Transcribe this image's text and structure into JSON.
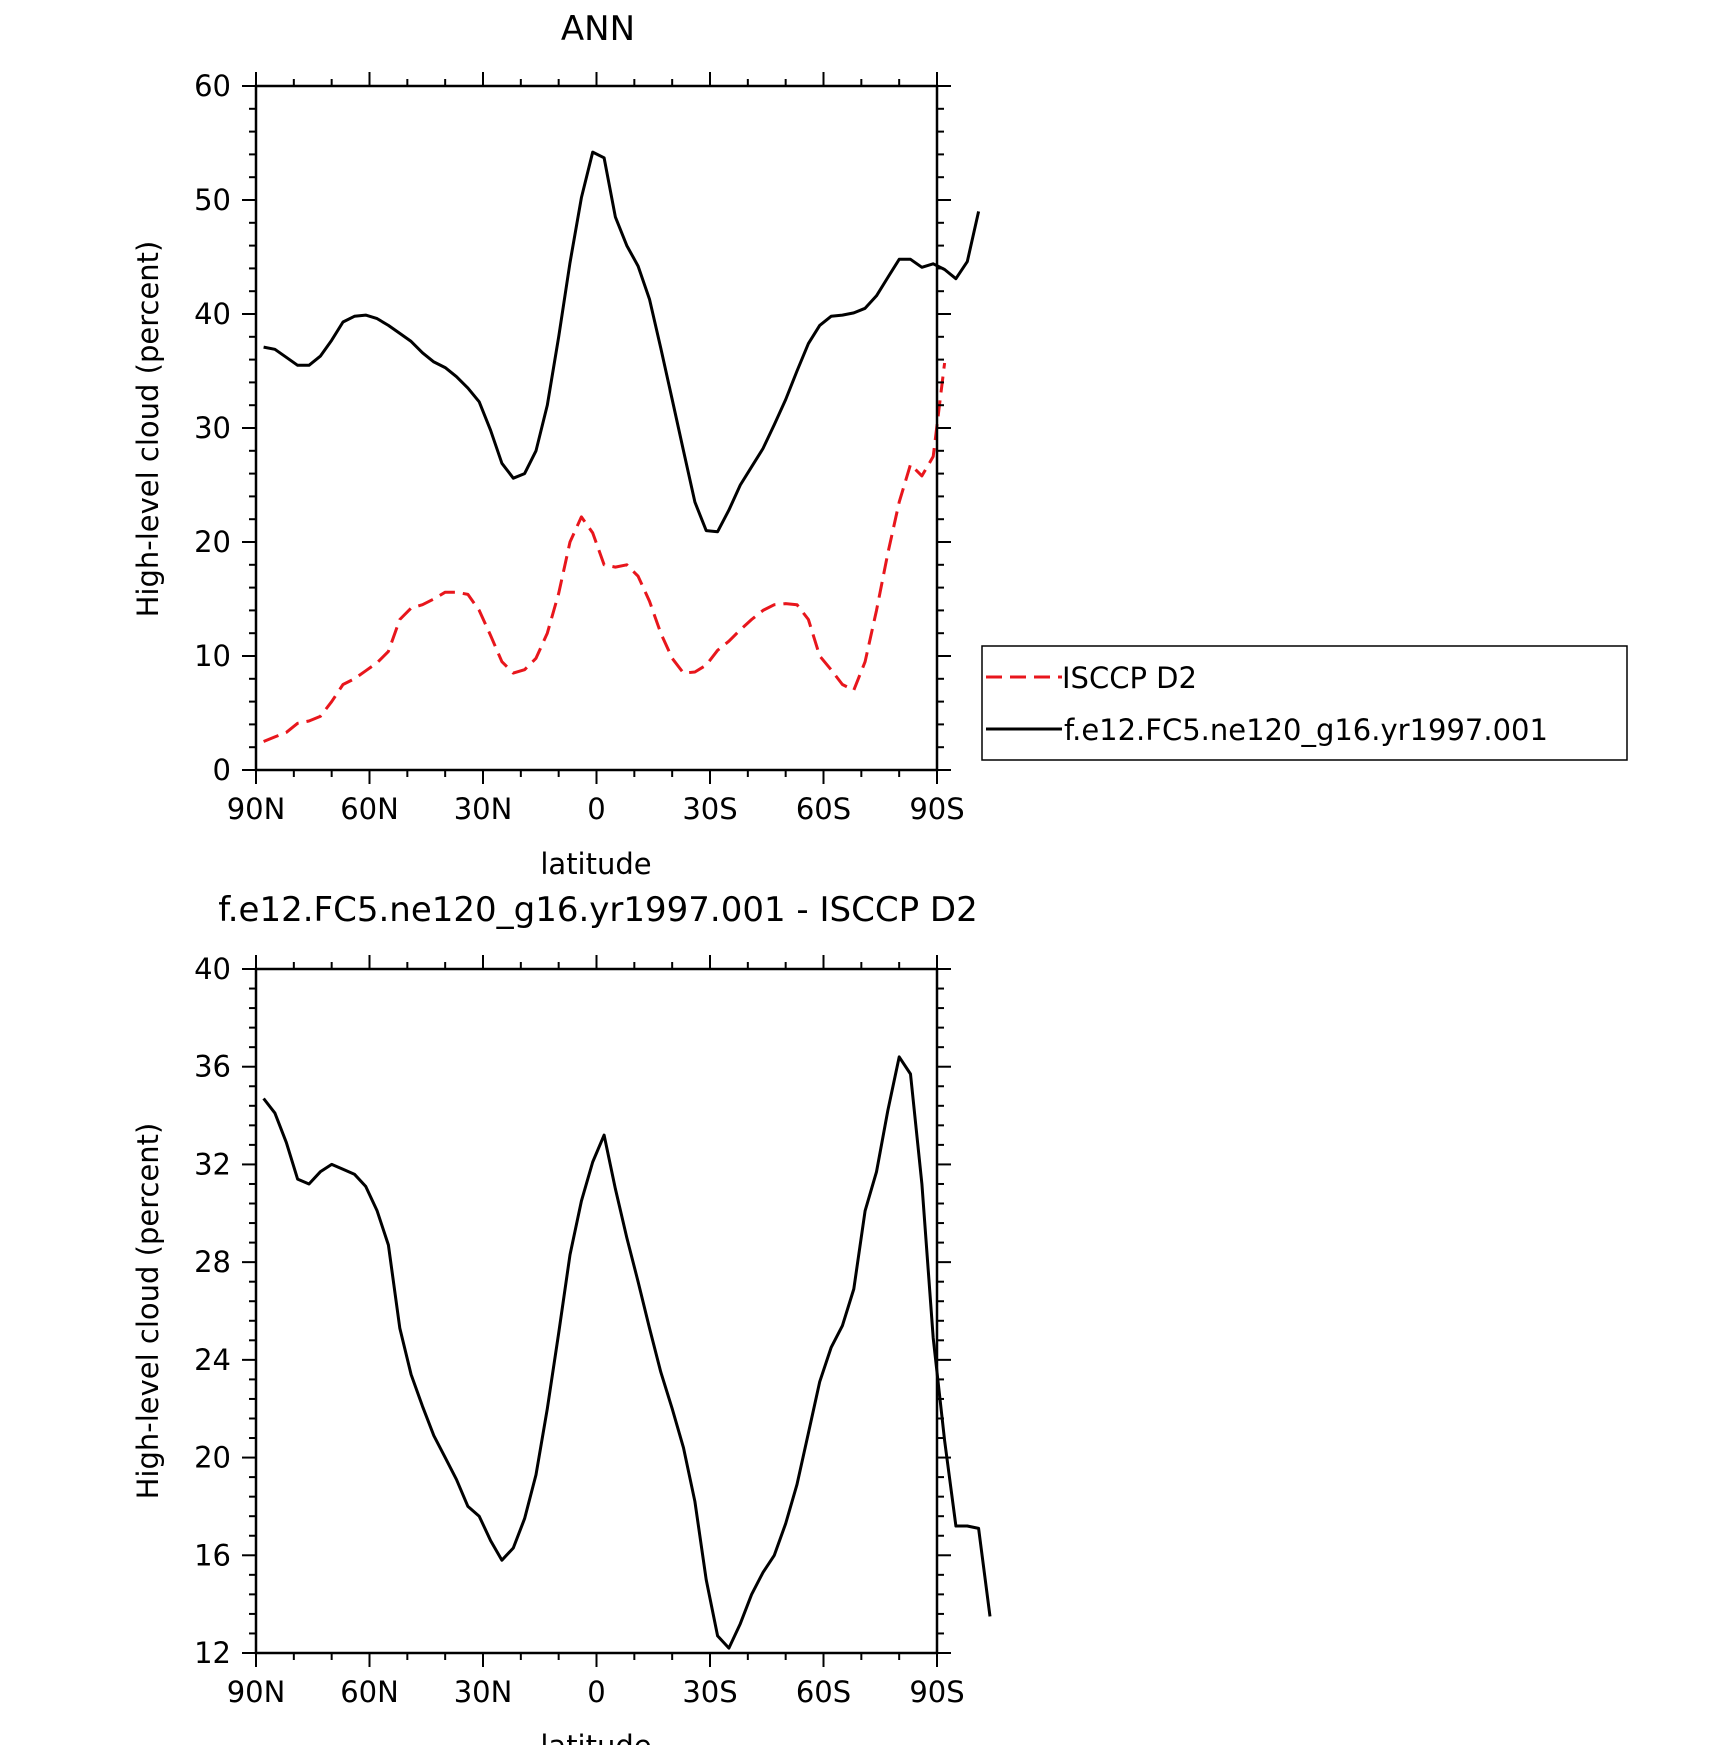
{
  "chart_data": [
    {
      "type": "line",
      "title": "ANN",
      "xlabel": "latitude",
      "ylabel": "High-level cloud (percent)",
      "xlim": [
        -90,
        90
      ],
      "ylim": [
        0,
        60
      ],
      "x_ticks": [
        {
          "value": -90,
          "label": "90N"
        },
        {
          "value": -60,
          "label": "60N"
        },
        {
          "value": -30,
          "label": "30N"
        },
        {
          "value": 0,
          "label": "0"
        },
        {
          "value": 30,
          "label": "30S"
        },
        {
          "value": 60,
          "label": "60S"
        },
        {
          "value": 90,
          "label": "90S"
        }
      ],
      "y_ticks": [
        0,
        10,
        20,
        30,
        40,
        50,
        60
      ],
      "legend_position": "right",
      "series": [
        {
          "name": "ISCCP D2",
          "color": "#e8161c",
          "dash": "dashed",
          "points": [
            [
              -88,
              2.5
            ],
            [
              -85,
              2.9
            ],
            [
              -82,
              3.3
            ],
            [
              -79,
              4.1
            ],
            [
              -76,
              4.3
            ],
            [
              -73,
              4.7
            ],
            [
              -70,
              6.0
            ],
            [
              -67,
              7.5
            ],
            [
              -64,
              8.0
            ],
            [
              -61,
              8.7
            ],
            [
              -58,
              9.4
            ],
            [
              -55,
              10.4
            ],
            [
              -52,
              13.2
            ],
            [
              -49,
              14.2
            ],
            [
              -46,
              14.5
            ],
            [
              -43,
              15.0
            ],
            [
              -40,
              15.6
            ],
            [
              -37,
              15.6
            ],
            [
              -34,
              15.4
            ],
            [
              -31,
              14.0
            ],
            [
              -28,
              11.8
            ],
            [
              -25,
              9.5
            ],
            [
              -22,
              8.5
            ],
            [
              -19,
              8.8
            ],
            [
              -16,
              9.8
            ],
            [
              -13,
              12.0
            ],
            [
              -10,
              15.5
            ],
            [
              -7,
              20.0
            ],
            [
              -4,
              22.2
            ],
            [
              -1,
              20.8
            ],
            [
              2,
              18.0
            ],
            [
              5,
              17.8
            ],
            [
              8,
              18.0
            ],
            [
              11,
              17.0
            ],
            [
              14,
              14.8
            ],
            [
              17,
              12.0
            ],
            [
              20,
              9.8
            ],
            [
              23,
              8.5
            ],
            [
              26,
              8.6
            ],
            [
              29,
              9.2
            ],
            [
              32,
              10.5
            ],
            [
              35,
              11.3
            ],
            [
              38,
              12.3
            ],
            [
              41,
              13.2
            ],
            [
              44,
              14.0
            ],
            [
              47,
              14.5
            ],
            [
              50,
              14.6
            ],
            [
              53,
              14.5
            ],
            [
              56,
              13.2
            ],
            [
              59,
              10.0
            ],
            [
              62,
              8.8
            ],
            [
              65,
              7.5
            ],
            [
              68,
              7.0
            ],
            [
              71,
              9.5
            ],
            [
              74,
              14.0
            ],
            [
              77,
              19.0
            ],
            [
              80,
              23.5
            ],
            [
              83,
              26.8
            ],
            [
              86,
              25.8
            ],
            [
              89,
              27.5
            ],
            [
              92,
              35.7
            ]
          ]
        },
        {
          "name": "f.e12.FC5.ne120_g16.yr1997.001",
          "color": "#000000",
          "dash": "solid",
          "points": [
            [
              -88,
              37.1
            ],
            [
              -85,
              36.9
            ],
            [
              -82,
              36.2
            ],
            [
              -79,
              35.5
            ],
            [
              -76,
              35.5
            ],
            [
              -73,
              36.3
            ],
            [
              -70,
              37.7
            ],
            [
              -67,
              39.3
            ],
            [
              -64,
              39.8
            ],
            [
              -61,
              39.9
            ],
            [
              -58,
              39.6
            ],
            [
              -55,
              39.0
            ],
            [
              -52,
              38.3
            ],
            [
              -49,
              37.6
            ],
            [
              -46,
              36.6
            ],
            [
              -43,
              35.8
            ],
            [
              -40,
              35.3
            ],
            [
              -37,
              34.5
            ],
            [
              -34,
              33.5
            ],
            [
              -31,
              32.3
            ],
            [
              -28,
              29.8
            ],
            [
              -25,
              26.9
            ],
            [
              -22,
              25.6
            ],
            [
              -19,
              26.0
            ],
            [
              -16,
              28.0
            ],
            [
              -13,
              32.0
            ],
            [
              -10,
              38.0
            ],
            [
              -7,
              44.5
            ],
            [
              -4,
              50.2
            ],
            [
              -1,
              54.2
            ],
            [
              2,
              53.7
            ],
            [
              5,
              48.5
            ],
            [
              8,
              46.0
            ],
            [
              11,
              44.2
            ],
            [
              14,
              41.3
            ],
            [
              17,
              37.0
            ],
            [
              20,
              32.5
            ],
            [
              23,
              28.0
            ],
            [
              26,
              23.5
            ],
            [
              29,
              21.0
            ],
            [
              32,
              20.9
            ],
            [
              35,
              22.8
            ],
            [
              38,
              25.0
            ],
            [
              41,
              26.6
            ],
            [
              44,
              28.2
            ],
            [
              47,
              30.3
            ],
            [
              50,
              32.5
            ],
            [
              53,
              35.0
            ],
            [
              56,
              37.4
            ],
            [
              59,
              39.0
            ],
            [
              62,
              39.8
            ],
            [
              65,
              39.9
            ],
            [
              68,
              40.1
            ],
            [
              71,
              40.5
            ],
            [
              74,
              41.6
            ],
            [
              77,
              43.2
            ],
            [
              80,
              44.8
            ],
            [
              83,
              44.8
            ],
            [
              86,
              44.1
            ],
            [
              89,
              44.4
            ],
            [
              92,
              43.9
            ],
            [
              95,
              43.1
            ],
            [
              98,
              44.6
            ],
            [
              101,
              49.0
            ]
          ]
        }
      ]
    },
    {
      "type": "line",
      "title": "f.e12.FC5.ne120_g16.yr1997.001 - ISCCP D2",
      "xlabel": "latitude",
      "ylabel": "High-level cloud (percent)",
      "xlim": [
        -90,
        90
      ],
      "ylim": [
        12,
        40
      ],
      "x_ticks": [
        {
          "value": -90,
          "label": "90N"
        },
        {
          "value": -60,
          "label": "60N"
        },
        {
          "value": -30,
          "label": "30N"
        },
        {
          "value": 0,
          "label": "0"
        },
        {
          "value": 30,
          "label": "30S"
        },
        {
          "value": 60,
          "label": "60S"
        },
        {
          "value": 90,
          "label": "90S"
        }
      ],
      "y_ticks": [
        12,
        16,
        20,
        24,
        28,
        32,
        36,
        40
      ],
      "series": [
        {
          "color": "#000000",
          "dash": "solid",
          "points": [
            [
              -88,
              34.7
            ],
            [
              -85,
              34.1
            ],
            [
              -82,
              32.9
            ],
            [
              -79,
              31.4
            ],
            [
              -76,
              31.2
            ],
            [
              -73,
              31.7
            ],
            [
              -70,
              32.0
            ],
            [
              -67,
              31.8
            ],
            [
              -64,
              31.6
            ],
            [
              -61,
              31.1
            ],
            [
              -58,
              30.1
            ],
            [
              -55,
              28.7
            ],
            [
              -52,
              25.3
            ],
            [
              -49,
              23.4
            ],
            [
              -46,
              22.1
            ],
            [
              -43,
              20.9
            ],
            [
              -40,
              20.0
            ],
            [
              -37,
              19.1
            ],
            [
              -34,
              18.0
            ],
            [
              -31,
              17.6
            ],
            [
              -28,
              16.6
            ],
            [
              -25,
              15.8
            ],
            [
              -22,
              16.3
            ],
            [
              -19,
              17.5
            ],
            [
              -16,
              19.3
            ],
            [
              -13,
              22.0
            ],
            [
              -10,
              25.1
            ],
            [
              -7,
              28.3
            ],
            [
              -4,
              30.5
            ],
            [
              -1,
              32.1
            ],
            [
              2,
              33.2
            ],
            [
              5,
              31.0
            ],
            [
              8,
              29.0
            ],
            [
              11,
              27.2
            ],
            [
              14,
              25.3
            ],
            [
              17,
              23.5
            ],
            [
              20,
              22.0
            ],
            [
              23,
              20.4
            ],
            [
              26,
              18.2
            ],
            [
              29,
              15.0
            ],
            [
              32,
              12.7
            ],
            [
              35,
              12.2
            ],
            [
              38,
              13.2
            ],
            [
              41,
              14.4
            ],
            [
              44,
              15.3
            ],
            [
              47,
              16.0
            ],
            [
              50,
              17.3
            ],
            [
              53,
              18.9
            ],
            [
              56,
              21.0
            ],
            [
              59,
              23.1
            ],
            [
              62,
              24.5
            ],
            [
              65,
              25.4
            ],
            [
              68,
              26.9
            ],
            [
              71,
              30.1
            ],
            [
              74,
              31.7
            ],
            [
              77,
              34.2
            ],
            [
              80,
              36.4
            ],
            [
              83,
              35.7
            ],
            [
              86,
              31.2
            ],
            [
              89,
              24.9
            ],
            [
              92,
              20.7
            ],
            [
              95,
              17.2
            ],
            [
              98,
              17.2
            ],
            [
              101,
              17.1
            ],
            [
              104,
              13.5
            ]
          ]
        }
      ]
    }
  ]
}
